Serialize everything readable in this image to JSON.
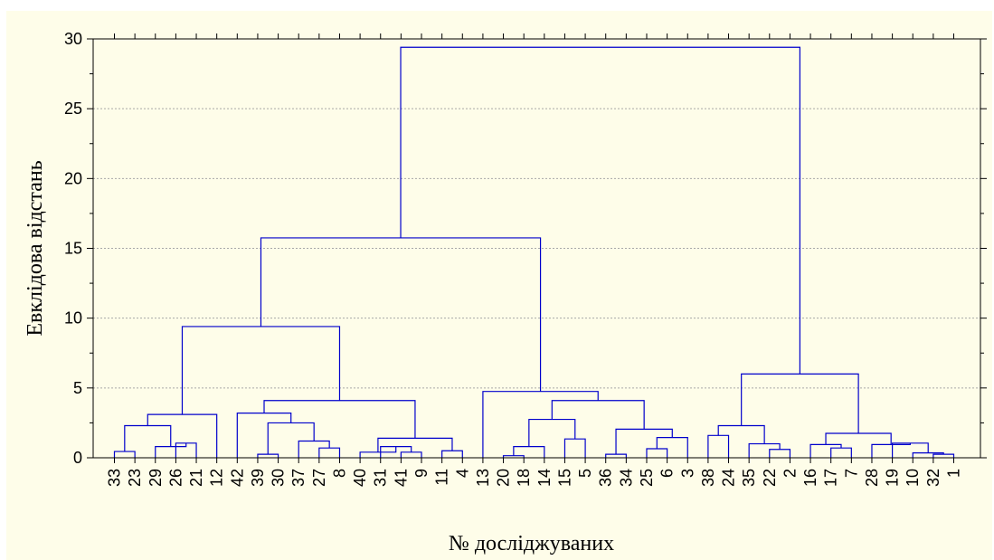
{
  "chart_data": {
    "type": "dendrogram",
    "title": "",
    "ylabel": "Евклідова відстань",
    "xlabel": "№ досліджуваних",
    "ylim": [
      0,
      30
    ],
    "yticks": [
      0,
      5,
      10,
      15,
      20,
      25,
      30
    ],
    "grid": "horizontal dotted",
    "line_color": "#0000cc",
    "leaf_order": [
      "33",
      "23",
      "29",
      "26",
      "21",
      "12",
      "42",
      "39",
      "30",
      "37",
      "27",
      "8",
      "40",
      "31",
      "41",
      "9",
      "11",
      "4",
      "13",
      "20",
      "18",
      "14",
      "15",
      "5",
      "36",
      "34",
      "25",
      "6",
      "3",
      "38",
      "24",
      "35",
      "22",
      "2",
      "16",
      "17",
      "7",
      "28",
      "19",
      "10",
      "32",
      "1"
    ],
    "merges": [
      {
        "a": "L0",
        "b": "L1",
        "h": 0.45
      },
      {
        "a": "L3",
        "b": "L4",
        "h": 1.05
      },
      {
        "a": "L2",
        "b": "M1",
        "h": 0.8
      },
      {
        "a": "M0",
        "b": "M2",
        "h": 2.3
      },
      {
        "a": "M3",
        "b": "L5",
        "h": 3.1
      },
      {
        "a": "L7",
        "b": "L8",
        "h": 0.25
      },
      {
        "a": "L10",
        "b": "L11",
        "h": 0.7
      },
      {
        "a": "L9",
        "b": "M6",
        "h": 1.2
      },
      {
        "a": "M5",
        "b": "M7",
        "h": 2.5
      },
      {
        "a": "L6",
        "b": "M8",
        "h": 3.2
      },
      {
        "a": "L14",
        "b": "L15",
        "h": 0.4
      },
      {
        "a": "L13",
        "b": "M10",
        "h": 0.8
      },
      {
        "a": "L12",
        "b": "M11",
        "h": 0.4
      },
      {
        "a": "L16",
        "b": "L17",
        "h": 0.5
      },
      {
        "a": "M12",
        "b": "M13",
        "h": 1.4
      },
      {
        "a": "M9",
        "b": "M14",
        "h": 4.1
      },
      {
        "a": "M4",
        "b": "M15",
        "h": 9.4
      },
      {
        "a": "L19",
        "b": "L20",
        "h": 0.15
      },
      {
        "a": "M17",
        "b": "L21",
        "h": 0.8
      },
      {
        "a": "L22",
        "b": "L23",
        "h": 1.35
      },
      {
        "a": "M18",
        "b": "M19",
        "h": 2.75
      },
      {
        "a": "L24",
        "b": "L25",
        "h": 0.25
      },
      {
        "a": "L26",
        "b": "L27",
        "h": 0.65
      },
      {
        "a": "M22",
        "b": "L28",
        "h": 1.45
      },
      {
        "a": "M21",
        "b": "M23",
        "h": 2.05
      },
      {
        "a": "M20",
        "b": "M24",
        "h": 4.1
      },
      {
        "a": "L18",
        "b": "M25",
        "h": 4.75
      },
      {
        "a": "M16",
        "b": "M26",
        "h": 15.75
      },
      {
        "a": "L29",
        "b": "L30",
        "h": 1.6
      },
      {
        "a": "L32",
        "b": "L33",
        "h": 0.6
      },
      {
        "a": "L31",
        "b": "M29",
        "h": 1.0
      },
      {
        "a": "M28",
        "b": "M30",
        "h": 2.3
      },
      {
        "a": "L35",
        "b": "L36",
        "h": 0.7
      },
      {
        "a": "L34",
        "b": "M32",
        "h": 0.95
      },
      {
        "a": "L40",
        "b": "L41",
        "h": 0.25
      },
      {
        "a": "L39",
        "b": "M34",
        "h": 0.35
      },
      {
        "a": "L38",
        "b": "M35",
        "h": 1.05
      },
      {
        "a": "L37",
        "b": "M36",
        "h": 0.95
      },
      {
        "a": "M33",
        "b": "M37",
        "h": 1.75
      },
      {
        "a": "M31",
        "b": "M38",
        "h": 6.0
      },
      {
        "a": "M27",
        "b": "M39",
        "h": 29.4
      }
    ]
  }
}
